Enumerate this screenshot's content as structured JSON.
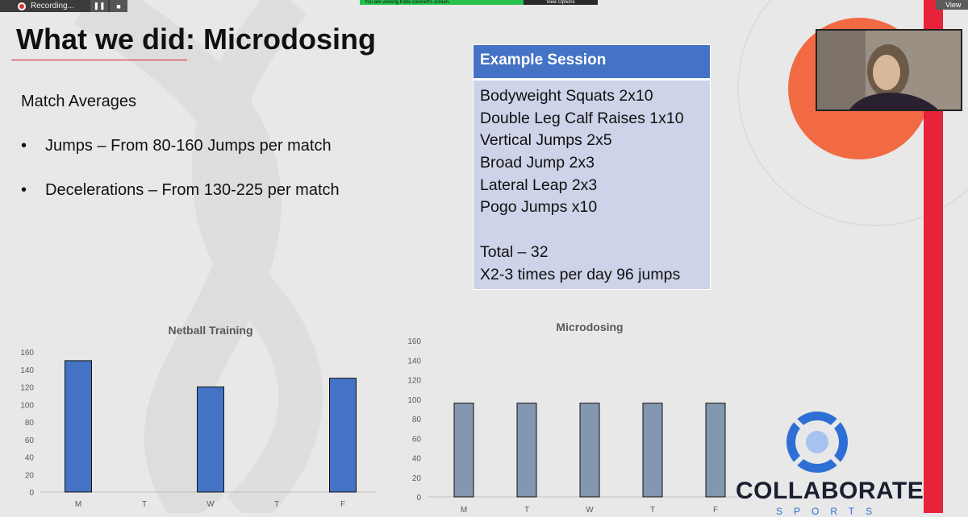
{
  "recording": {
    "label": "Recording...",
    "pause_label": "❚❚",
    "stop_label": "■"
  },
  "share_notice": {
    "text": "You are viewing Katie Dennett's screen.",
    "options_label": "View Options"
  },
  "view_button": {
    "label": "View"
  },
  "slide": {
    "title": "What we did: Microdosing",
    "subtitle": "Match Averages",
    "bullets": [
      "Jumps – From 80-160 Jumps per match",
      "Decelerations – From 130-225 per match"
    ],
    "bullet_mark": "•"
  },
  "session": {
    "header": "Example Session",
    "items": [
      "Bodyweight Squats 2x10",
      "Double Leg Calf Raises 1x10",
      "Vertical Jumps 2x5",
      "Broad Jump 2x3",
      "Lateral Leap 2x3",
      "Pogo Jumps x10",
      "",
      "Total – 32",
      "X2-3 times per day 96 jumps"
    ]
  },
  "logo": {
    "text": "COLLABORATE",
    "sub": "SPORTS"
  },
  "colors": {
    "bar_blue": "#4472c4",
    "bar_gray": "#8497b0",
    "accent_red": "#e8223b",
    "accent_orange": "#f26a43"
  },
  "chart_data": [
    {
      "type": "bar",
      "title": "Netball Training",
      "categories": [
        "M",
        "T",
        "W",
        "T",
        "F"
      ],
      "values": [
        150,
        0,
        120,
        0,
        130
      ],
      "ylim": [
        0,
        160
      ],
      "yticks": [
        0,
        20,
        40,
        60,
        80,
        100,
        120,
        140,
        160
      ],
      "color": "#4472c4",
      "grid": false
    },
    {
      "type": "bar",
      "title": "Microdosing",
      "categories": [
        "M",
        "T",
        "W",
        "T",
        "F"
      ],
      "values": [
        96,
        96,
        96,
        96,
        96
      ],
      "ylim": [
        0,
        160
      ],
      "yticks": [
        0,
        20,
        40,
        60,
        80,
        100,
        120,
        140,
        160
      ],
      "color": "#8497b0",
      "grid": false
    }
  ]
}
